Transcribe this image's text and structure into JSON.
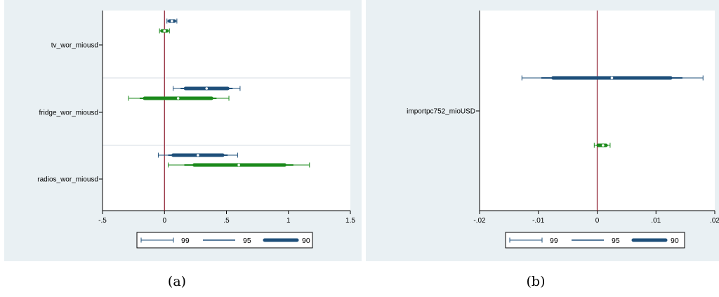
{
  "colors": {
    "panel_bg": "#e9f0f3",
    "plot_bg": "#ffffff",
    "series1": "#1e4f7a",
    "series2": "#1b8a1b",
    "zero_line": "#8b1a2b",
    "divider": "#d6dee3"
  },
  "chart_data": [
    {
      "type": "coefficient-plot",
      "caption": "(a)",
      "categories": [
        "tv_wor_miousd",
        "fridge_wor_miousd",
        "radios_wor_miousd"
      ],
      "xlim": [
        -0.5,
        1.5
      ],
      "xticks": [
        -0.5,
        0,
        0.5,
        1,
        1.5
      ],
      "xtick_labels": [
        "-.5",
        "0",
        ".5",
        "1",
        "1.5"
      ],
      "reference_line": 0,
      "legend": [
        "99",
        "95",
        "90"
      ],
      "series": [
        {
          "points": [
            {
              "category": "tv_wor_miousd",
              "estimate": 0.06,
              "ci99": [
                0.02,
                0.1
              ],
              "ci95": [
                0.03,
                0.09
              ],
              "ci90": [
                0.04,
                0.08
              ]
            },
            {
              "category": "fridge_wor_miousd",
              "estimate": 0.34,
              "ci99": [
                0.07,
                0.61
              ],
              "ci95": [
                0.13,
                0.55
              ],
              "ci90": [
                0.17,
                0.51
              ]
            },
            {
              "category": "radios_wor_miousd",
              "estimate": 0.27,
              "ci99": [
                -0.05,
                0.59
              ],
              "ci95": [
                0.03,
                0.51
              ],
              "ci90": [
                0.07,
                0.47
              ]
            }
          ]
        },
        {
          "points": [
            {
              "category": "tv_wor_miousd",
              "estimate": 0.0,
              "ci99": [
                -0.04,
                0.04
              ],
              "ci95": [
                -0.03,
                0.03
              ],
              "ci90": [
                -0.02,
                0.02
              ]
            },
            {
              "category": "fridge_wor_miousd",
              "estimate": 0.11,
              "ci99": [
                -0.29,
                0.52
              ],
              "ci95": [
                -0.2,
                0.42
              ],
              "ci90": [
                -0.16,
                0.38
              ]
            },
            {
              "category": "radios_wor_miousd",
              "estimate": 0.6,
              "ci99": [
                0.03,
                1.17
              ],
              "ci95": [
                0.16,
                1.04
              ],
              "ci90": [
                0.24,
                0.97
              ]
            }
          ]
        }
      ]
    },
    {
      "type": "coefficient-plot",
      "caption": "(b)",
      "categories": [
        "importpc752_mioUSD"
      ],
      "xlim": [
        -0.02,
        0.02
      ],
      "xticks": [
        -0.02,
        -0.01,
        0,
        0.01,
        0.02
      ],
      "xtick_labels": [
        "-.02",
        "-.01",
        "0",
        ".01",
        ".02"
      ],
      "reference_line": 0,
      "legend": [
        "99",
        "95",
        "90"
      ],
      "series": [
        {
          "points": [
            {
              "category": "importpc752_mioUSD",
              "estimate": 0.0025,
              "ci99": [
                -0.0128,
                0.018
              ],
              "ci95": [
                -0.0095,
                0.0145
              ],
              "ci90": [
                -0.0075,
                0.0125
              ]
            }
          ]
        },
        {
          "points": [
            {
              "category": "importpc752_mioUSD",
              "estimate": 0.001,
              "ci99": [
                -0.0005,
                0.0022
              ],
              "ci95": [
                -0.0001,
                0.0018
              ],
              "ci90": [
                0.0002,
                0.0015
              ]
            }
          ]
        }
      ]
    }
  ]
}
